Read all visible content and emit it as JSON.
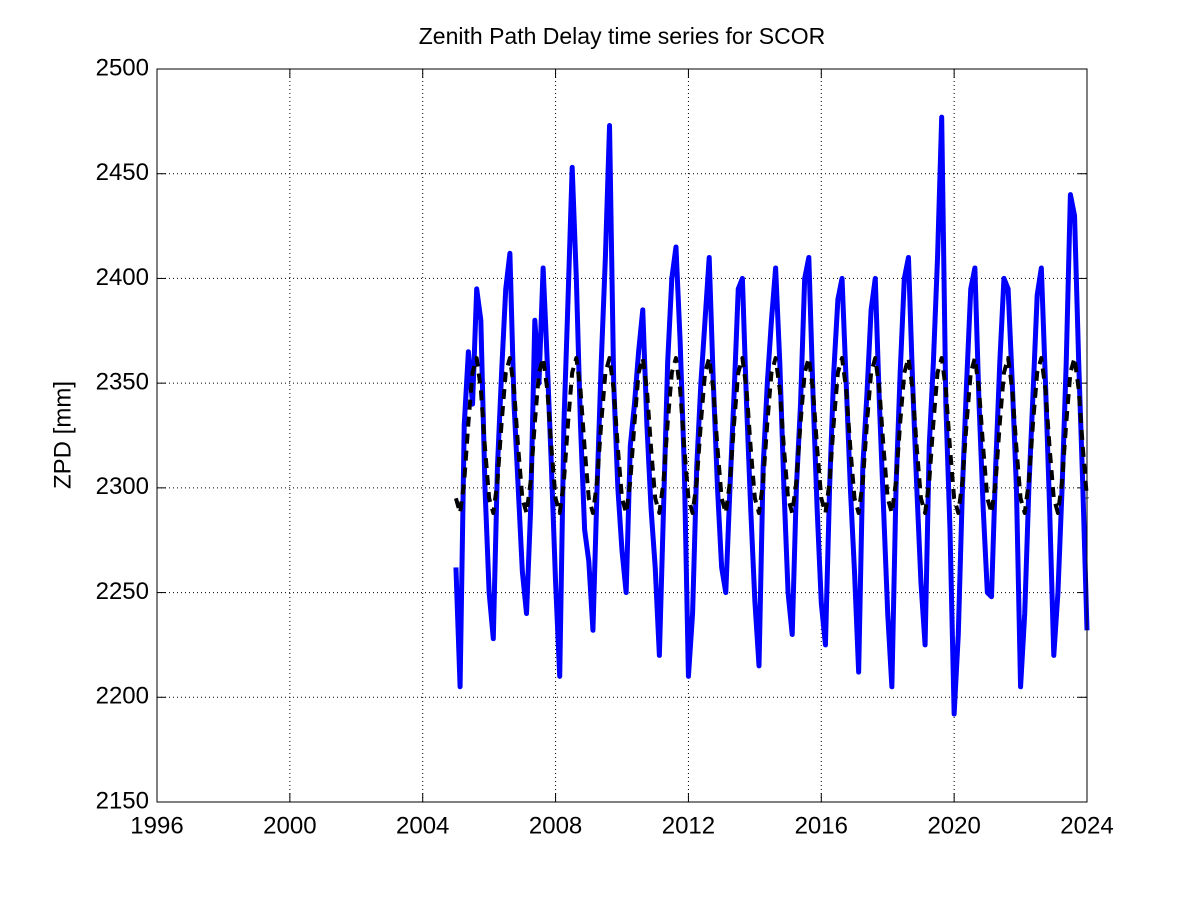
{
  "chart_data": {
    "type": "line",
    "title": "Zenith Path Delay time series for SCOR",
    "y_label": "ZPD [mm]",
    "xlim": [
      1996,
      2024
    ],
    "xticks": [
      1996,
      2000,
      2004,
      2008,
      2012,
      2016,
      2020,
      2024
    ],
    "ylim": [
      2150,
      2500
    ],
    "yticks": [
      2150,
      2200,
      2250,
      2300,
      2350,
      2400,
      2450,
      2500
    ],
    "grid": true,
    "x": [
      2005,
      2005.125,
      2005.25,
      2005.375,
      2005.5,
      2005.625,
      2005.75,
      2005.875,
      2006,
      2006.125,
      2006.25,
      2006.375,
      2006.5,
      2006.625,
      2006.75,
      2006.875,
      2007,
      2007.125,
      2007.25,
      2007.375,
      2007.5,
      2007.625,
      2007.75,
      2007.875,
      2008,
      2008.125,
      2008.25,
      2008.375,
      2008.5,
      2008.625,
      2008.75,
      2008.875,
      2009,
      2009.125,
      2009.25,
      2009.375,
      2009.5,
      2009.625,
      2009.75,
      2009.875,
      2010,
      2010.125,
      2010.25,
      2010.375,
      2010.5,
      2010.625,
      2010.75,
      2010.875,
      2011,
      2011.125,
      2011.25,
      2011.375,
      2011.5,
      2011.625,
      2011.75,
      2011.875,
      2012,
      2012.125,
      2012.25,
      2012.375,
      2012.5,
      2012.625,
      2012.75,
      2012.875,
      2013,
      2013.125,
      2013.25,
      2013.375,
      2013.5,
      2013.625,
      2013.75,
      2013.875,
      2014,
      2014.125,
      2014.25,
      2014.375,
      2014.5,
      2014.625,
      2014.75,
      2014.875,
      2015,
      2015.125,
      2015.25,
      2015.375,
      2015.5,
      2015.625,
      2015.75,
      2015.875,
      2016,
      2016.125,
      2016.25,
      2016.375,
      2016.5,
      2016.625,
      2016.75,
      2016.875,
      2017,
      2017.125,
      2017.25,
      2017.375,
      2017.5,
      2017.625,
      2017.75,
      2017.875,
      2018,
      2018.125,
      2018.25,
      2018.375,
      2018.5,
      2018.625,
      2018.75,
      2018.875,
      2019,
      2019.125,
      2019.25,
      2019.375,
      2019.5,
      2019.625,
      2019.75,
      2019.875,
      2020,
      2020.125,
      2020.25,
      2020.375,
      2020.5,
      2020.625,
      2020.75,
      2020.875,
      2021,
      2021.125,
      2021.25,
      2021.375,
      2021.5,
      2021.625,
      2021.75,
      2021.875,
      2022,
      2022.125,
      2022.25,
      2022.375,
      2022.5,
      2022.625,
      2022.75,
      2022.875,
      2023,
      2023.125,
      2023.25,
      2023.375,
      2023.5,
      2023.625,
      2023.75,
      2023.875,
      2024
    ],
    "series": [
      {
        "color": "#0000ff",
        "width": 5,
        "dash": false,
        "values": [
          2262,
          2205,
          2330,
          2365,
          2340,
          2395,
          2380,
          2300,
          2250,
          2228,
          2310,
          2355,
          2395,
          2412,
          2340,
          2300,
          2260,
          2240,
          2290,
          2380,
          2350,
          2405,
          2360,
          2310,
          2255,
          2210,
          2330,
          2390,
          2453,
          2400,
          2330,
          2280,
          2265,
          2232,
          2300,
          2360,
          2410,
          2473,
          2350,
          2300,
          2270,
          2250,
          2320,
          2340,
          2365,
          2385,
          2330,
          2290,
          2262,
          2220,
          2290,
          2360,
          2400,
          2415,
          2370,
          2310,
          2210,
          2240,
          2310,
          2350,
          2380,
          2410,
          2350,
          2300,
          2262,
          2250,
          2300,
          2345,
          2395,
          2400,
          2340,
          2290,
          2246,
          2215,
          2310,
          2350,
          2380,
          2405,
          2360,
          2300,
          2250,
          2230,
          2300,
          2340,
          2400,
          2410,
          2345,
          2290,
          2245,
          2225,
          2300,
          2355,
          2390,
          2400,
          2350,
          2300,
          2260,
          2212,
          2310,
          2345,
          2385,
          2400,
          2340,
          2290,
          2240,
          2205,
          2300,
          2355,
          2400,
          2410,
          2350,
          2300,
          2255,
          2225,
          2320,
          2360,
          2410,
          2477,
          2340,
          2280,
          2192,
          2230,
          2300,
          2350,
          2395,
          2405,
          2340,
          2290,
          2250,
          2248,
          2310,
          2360,
          2400,
          2395,
          2350,
          2300,
          2205,
          2240,
          2300,
          2345,
          2392,
          2405,
          2350,
          2290,
          2220,
          2250,
          2300,
          2360,
          2440,
          2430,
          2360,
          2300,
          2232
        ]
      },
      {
        "color": "#000000",
        "width": 4,
        "dash": true,
        "values": [
          2295,
          2288,
          2303,
          2331,
          2355,
          2362,
          2347,
          2319,
          2295,
          2288,
          2303,
          2331,
          2355,
          2362,
          2347,
          2319,
          2295,
          2288,
          2303,
          2331,
          2355,
          2362,
          2347,
          2319,
          2295,
          2288,
          2303,
          2331,
          2355,
          2362,
          2347,
          2319,
          2295,
          2288,
          2303,
          2331,
          2355,
          2362,
          2347,
          2319,
          2295,
          2288,
          2303,
          2331,
          2355,
          2362,
          2347,
          2319,
          2295,
          2288,
          2303,
          2331,
          2355,
          2362,
          2347,
          2319,
          2295,
          2288,
          2303,
          2331,
          2355,
          2362,
          2347,
          2319,
          2295,
          2288,
          2303,
          2331,
          2355,
          2362,
          2347,
          2319,
          2295,
          2288,
          2303,
          2331,
          2355,
          2362,
          2347,
          2319,
          2295,
          2288,
          2303,
          2331,
          2355,
          2362,
          2347,
          2319,
          2295,
          2288,
          2303,
          2331,
          2355,
          2362,
          2347,
          2319,
          2295,
          2288,
          2303,
          2331,
          2355,
          2362,
          2347,
          2319,
          2295,
          2288,
          2303,
          2331,
          2355,
          2362,
          2347,
          2319,
          2295,
          2288,
          2303,
          2331,
          2355,
          2362,
          2347,
          2319,
          2295,
          2288,
          2303,
          2331,
          2355,
          2362,
          2347,
          2319,
          2295,
          2288,
          2303,
          2331,
          2355,
          2362,
          2347,
          2319,
          2295,
          2288,
          2303,
          2331,
          2355,
          2362,
          2347,
          2319,
          2295,
          2288,
          2303,
          2331,
          2355,
          2362,
          2347,
          2319,
          2295
        ]
      }
    ]
  }
}
